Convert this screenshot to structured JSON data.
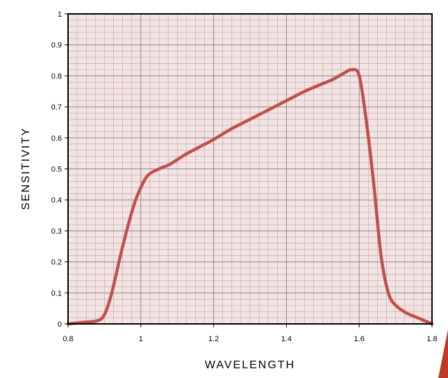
{
  "chart_data": {
    "type": "line",
    "title": "",
    "xlabel": "WAVELENGTH",
    "ylabel": "SENSITIVITY",
    "xlim": [
      0.8,
      1.8
    ],
    "ylim": [
      0,
      1
    ],
    "x_ticks": [
      "0.8",
      "1",
      "1.2",
      "1.4",
      "1.6",
      "1.8"
    ],
    "y_ticks": [
      "0",
      "0.1",
      "0.2",
      "0.3",
      "0.4",
      "0.5",
      "0.6",
      "0.7",
      "0.8",
      "0.9",
      "1"
    ],
    "grid": true,
    "legend": "none",
    "colors": {
      "line": "#c0504d",
      "plot_background": "#f3e4e4",
      "minor_grid": "#c9aaaa",
      "major_grid": "#8c8c8c",
      "accent": "#c0392b"
    },
    "series": [
      {
        "x": [
          0.8,
          0.84,
          0.88,
          0.9,
          0.92,
          0.95,
          0.98,
          1.0,
          1.02,
          1.05,
          1.08,
          1.12,
          1.16,
          1.2,
          1.25,
          1.3,
          1.35,
          1.4,
          1.45,
          1.5,
          1.53,
          1.56,
          1.58,
          1.6,
          1.62,
          1.64,
          1.66,
          1.68,
          1.7,
          1.73,
          1.76,
          1.8
        ],
        "y": [
          0.0,
          0.005,
          0.01,
          0.03,
          0.1,
          0.25,
          0.38,
          0.44,
          0.48,
          0.5,
          0.515,
          0.545,
          0.57,
          0.595,
          0.63,
          0.66,
          0.69,
          0.72,
          0.75,
          0.775,
          0.79,
          0.81,
          0.82,
          0.8,
          0.65,
          0.45,
          0.22,
          0.1,
          0.06,
          0.035,
          0.02,
          0.0
        ]
      }
    ]
  }
}
